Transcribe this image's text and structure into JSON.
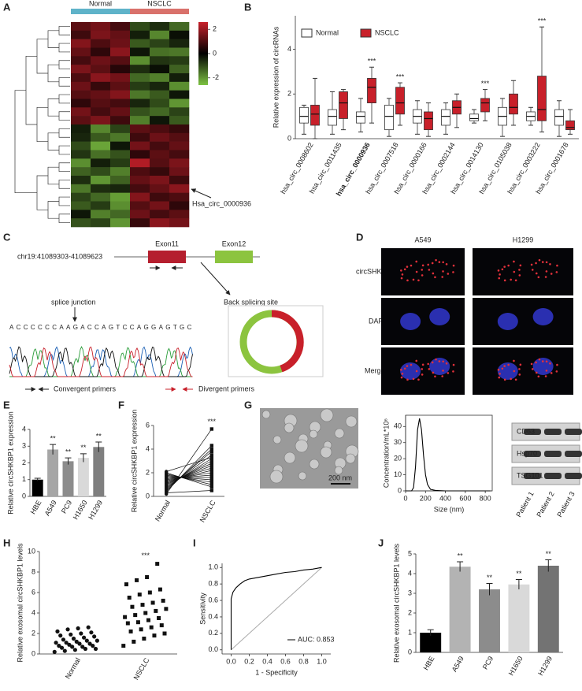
{
  "chart_data": [
    {
      "type": "heatmap",
      "panel": "A",
      "groups": [
        {
          "name": "Normal",
          "color": "#5fb3c9"
        },
        {
          "name": "NSCLC",
          "color": "#d9716b"
        }
      ],
      "colors": [
        "#7dc242",
        "#000000",
        "#c8202a"
      ],
      "clim": [
        -2.6,
        2.6
      ],
      "cticks": [
        2,
        0,
        -2
      ],
      "annotation": "Hsa_circ_0000936",
      "values": [
        [
          1.2,
          1.5,
          0.9,
          -1.0,
          -0.6,
          -1.4
        ],
        [
          0.8,
          1.6,
          1.3,
          -0.4,
          -1.8,
          -0.2
        ],
        [
          1.7,
          1.0,
          1.4,
          -1.2,
          -0.9,
          -0.5
        ],
        [
          1.3,
          0.6,
          1.8,
          -0.3,
          -1.5,
          -1.6
        ],
        [
          0.9,
          1.4,
          1.1,
          -1.9,
          -0.7,
          -0.8
        ],
        [
          1.6,
          1.2,
          0.5,
          -0.6,
          -0.2,
          -1.3
        ],
        [
          1.0,
          1.8,
          1.5,
          -1.4,
          -1.7,
          -0.4
        ],
        [
          1.4,
          0.7,
          1.2,
          -0.8,
          -0.5,
          -1.9
        ],
        [
          1.1,
          1.3,
          1.7,
          -1.6,
          -1.2,
          -0.3
        ],
        [
          0.6,
          1.1,
          0.9,
          -0.5,
          -1.0,
          -2.0
        ],
        [
          1.5,
          0.9,
          1.3,
          -1.1,
          -1.4,
          -0.9
        ],
        [
          1.2,
          1.6,
          0.8,
          -1.7,
          -0.3,
          -1.2
        ],
        [
          -0.4,
          -1.8,
          -0.9,
          1.2,
          1.0,
          0.7
        ],
        [
          -0.5,
          -1.2,
          -1.6,
          0.8,
          1.4,
          1.1
        ],
        [
          -1.0,
          -2.2,
          -0.3,
          1.5,
          0.9,
          1.3
        ],
        [
          -0.7,
          -1.5,
          -1.1,
          0.6,
          1.2,
          0.9
        ],
        [
          -1.9,
          -0.4,
          -0.8,
          2.3,
          1.1,
          1.6
        ],
        [
          -1.3,
          -1.0,
          -1.7,
          1.0,
          0.7,
          1.4
        ],
        [
          -0.6,
          -2.0,
          -1.3,
          1.3,
          1.6,
          0.8
        ],
        [
          -1.6,
          -0.6,
          -0.5,
          0.9,
          1.3,
          1.8
        ],
        [
          -0.9,
          -1.4,
          -2.1,
          1.7,
          0.8,
          1.0
        ],
        [
          -1.2,
          -0.8,
          -1.9,
          1.1,
          1.5,
          0.6
        ],
        [
          -0.3,
          -1.7,
          -1.4,
          1.4,
          0.9,
          1.2
        ],
        [
          -1.1,
          -0.9,
          -2.0,
          0.7,
          1.8,
          1.5
        ]
      ]
    },
    {
      "type": "box",
      "panel": "B",
      "ylabel": "Relative expression of circRNAs",
      "ylim": [
        0,
        5.5
      ],
      "yticks": [
        0,
        2,
        4
      ],
      "categories": [
        "hsa_circ_0008602",
        "hsa_circ_0011435",
        "hsa_circ_0000936",
        "hsa_circ_0007518",
        "hsa_circ_0000166",
        "hsa_circ_0002144",
        "hsa_circ_0014130",
        "hsa_circ_0105038",
        "hsa_circ_0003222",
        "hsa_circ_0001678"
      ],
      "series": [
        {
          "name": "Normal",
          "color": "#ffffff",
          "low": [
            0.2,
            0.2,
            0.3,
            0.1,
            0.2,
            0.2,
            0.7,
            0.1,
            0.6,
            0.1
          ],
          "q1": [
            0.7,
            0.6,
            0.7,
            0.4,
            0.7,
            0.6,
            0.8,
            0.6,
            0.8,
            0.6
          ],
          "median": [
            1.0,
            1.0,
            1.0,
            1.0,
            1.0,
            1.0,
            0.9,
            1.0,
            1.0,
            1.0
          ],
          "q3": [
            1.4,
            1.3,
            1.2,
            1.5,
            1.3,
            1.3,
            1.1,
            1.4,
            1.2,
            1.3
          ],
          "high": [
            1.5,
            2.1,
            1.8,
            1.8,
            1.7,
            1.6,
            1.3,
            1.8,
            1.4,
            1.7
          ]
        },
        {
          "name": "NSCLC",
          "color": "#c8202a",
          "low": [
            0.0,
            0.4,
            0.7,
            0.6,
            0.1,
            0.5,
            0.8,
            0.6,
            0.3,
            0.2
          ],
          "q1": [
            0.6,
            0.9,
            1.6,
            1.1,
            0.4,
            1.1,
            1.2,
            1.1,
            0.8,
            0.4
          ],
          "median": [
            1.1,
            1.6,
            2.3,
            1.6,
            0.9,
            1.4,
            1.6,
            1.4,
            1.3,
            0.5
          ],
          "q3": [
            1.5,
            2.1,
            2.7,
            2.3,
            1.2,
            1.7,
            1.8,
            2.0,
            2.8,
            0.8
          ],
          "high": [
            2.7,
            2.2,
            3.2,
            2.5,
            1.6,
            2.0,
            2.2,
            2.6,
            5.0,
            1.3
          ]
        }
      ],
      "significance": [
        null,
        null,
        "***",
        "***",
        null,
        null,
        "***",
        null,
        "***",
        null
      ]
    },
    {
      "type": "bar",
      "panel": "E",
      "ylabel": "Relative circSHKBP1 expression",
      "ylim": [
        0,
        4
      ],
      "yticks": [
        0,
        1,
        2,
        3,
        4
      ],
      "categories": [
        "HBE",
        "A549",
        "PC9",
        "H1650",
        "H1299"
      ],
      "values": [
        1.0,
        2.8,
        2.1,
        2.3,
        2.95
      ],
      "errors": [
        0.08,
        0.3,
        0.2,
        0.25,
        0.3
      ],
      "colors": [
        "#000000",
        "#a6a6a6",
        "#8c8c8c",
        "#d9d9d9",
        "#7f7f7f"
      ],
      "significance": [
        null,
        "**",
        "**",
        "**",
        "**"
      ]
    },
    {
      "type": "paired",
      "panel": "F",
      "ylabel": "Relative circSHKBP1 expression",
      "ylim": [
        0,
        6
      ],
      "yticks": [
        0,
        2,
        4,
        6
      ],
      "significance": "***",
      "series": [
        {
          "name": "Normal",
          "values": [
            0.2,
            0.4,
            0.5,
            0.6,
            0.7,
            0.8,
            0.9,
            1.0,
            1.1,
            1.2,
            1.3,
            1.4,
            1.5,
            1.6,
            1.7,
            1.8,
            1.9,
            2.0,
            2.1,
            0.3
          ]
        },
        {
          "name": "NSCLC",
          "values": [
            5.7,
            4.3,
            4.0,
            3.8,
            3.5,
            3.2,
            3.0,
            2.8,
            2.6,
            2.4,
            2.2,
            2.0,
            1.8,
            1.6,
            1.4,
            1.2,
            1.0,
            0.8,
            3.3,
            0.5
          ]
        }
      ]
    },
    {
      "type": "line",
      "panel": "G",
      "frame": true,
      "xlabel": "Size (nm)",
      "ylabel": "Concentration/mL*10⁶",
      "xlim": [
        0,
        870
      ],
      "ylim": [
        0,
        47
      ],
      "xticks": [
        0,
        200,
        400,
        600,
        800
      ],
      "yticks": [
        0,
        10,
        20,
        30,
        40
      ],
      "x": [
        0,
        60,
        80,
        100,
        120,
        140,
        160,
        180,
        200,
        220,
        250,
        300,
        400,
        500,
        600,
        700,
        800,
        850
      ],
      "values": [
        0,
        0,
        2,
        15,
        38,
        45,
        38,
        22,
        10,
        4,
        1,
        0.3,
        0,
        0,
        0,
        0,
        0,
        0
      ],
      "color": "#000000"
    },
    {
      "type": "dot",
      "panel": "H",
      "ylabel": "Relative exosomal circSHKBP1 levels",
      "ylim": [
        0,
        10
      ],
      "yticks": [
        0,
        2,
        4,
        6,
        8,
        10
      ],
      "significance": [
        null,
        "***"
      ],
      "series": [
        {
          "name": "Normal",
          "values": [
            0.2,
            0.3,
            0.4,
            0.5,
            0.5,
            0.6,
            0.7,
            0.7,
            0.8,
            0.8,
            0.9,
            1.0,
            1.0,
            1.1,
            1.1,
            1.2,
            1.3,
            1.3,
            1.4,
            1.5,
            1.6,
            1.7,
            1.8,
            1.9,
            2.0,
            2.1,
            2.2,
            2.4,
            2.5,
            2.6
          ]
        },
        {
          "name": "NSCLC",
          "values": [
            0.8,
            1.2,
            1.5,
            1.8,
            2.0,
            2.2,
            2.4,
            2.6,
            2.8,
            3.0,
            3.1,
            3.3,
            3.5,
            3.6,
            3.8,
            4.0,
            4.2,
            4.4,
            4.6,
            4.8,
            5.0,
            5.2,
            5.5,
            5.8,
            6.0,
            6.3,
            6.8,
            7.2,
            7.5,
            8.8
          ]
        }
      ]
    },
    {
      "type": "line",
      "panel": "I",
      "frame": false,
      "diagonal": true,
      "legend": "AUC: 0.853",
      "xlabel": "1 - Specificity",
      "ylabel": "Sensitivity",
      "xlim": [
        -0.1,
        1.1
      ],
      "ylim": [
        -0.05,
        1.05
      ],
      "xticks": [
        {
          "value": 0,
          "label": "0.0"
        },
        {
          "value": 0.2,
          "label": "0.2"
        },
        {
          "value": 0.4,
          "label": "0.4"
        },
        {
          "value": 0.6,
          "label": "0.6"
        },
        {
          "value": 0.8,
          "label": "0.8"
        },
        {
          "value": 1,
          "label": "1.0"
        }
      ],
      "yticks": [
        {
          "value": 0,
          "label": "0.0"
        },
        {
          "value": 0.2,
          "label": "0.2"
        },
        {
          "value": 0.4,
          "label": "0.4"
        },
        {
          "value": 0.6,
          "label": "0.6"
        },
        {
          "value": 0.8,
          "label": "0.8"
        },
        {
          "value": 1,
          "label": "1.0"
        }
      ],
      "x": [
        0,
        0,
        0.02,
        0.05,
        0.08,
        0.1,
        0.15,
        0.2,
        0.3,
        0.4,
        0.5,
        0.6,
        0.7,
        0.8,
        0.9,
        1.0
      ],
      "values": [
        0,
        0.62,
        0.7,
        0.75,
        0.78,
        0.8,
        0.84,
        0.86,
        0.88,
        0.9,
        0.92,
        0.94,
        0.95,
        0.97,
        0.98,
        1.0
      ],
      "color": "#000000"
    },
    {
      "type": "bar",
      "panel": "J",
      "ylabel": "Relative exosomal circSHKBP1 levels",
      "ylim": [
        0,
        5
      ],
      "yticks": [
        0,
        1,
        2,
        3,
        4,
        5
      ],
      "categories": [
        "HBE",
        "A549",
        "PC9",
        "H1650",
        "H1299"
      ],
      "values": [
        1.0,
        4.35,
        3.2,
        3.45,
        4.4
      ],
      "errors": [
        0.15,
        0.25,
        0.3,
        0.25,
        0.3
      ],
      "colors": [
        "#000000",
        "#b3b3b3",
        "#8c8c8c",
        "#d9d9d9",
        "#737373"
      ],
      "significance": [
        null,
        "**",
        "**",
        "**",
        "**"
      ]
    }
  ],
  "panels": {
    "C": {
      "letter": "C",
      "locus": "chr19:41089303-41089623",
      "exons": [
        "Exon11",
        "Exon12"
      ],
      "splice_junction": "splice junction",
      "back_splicing": "Back splicing site",
      "sequence": "ACCCCCCAAGACCAGTCCAGGAGTGC",
      "legend": [
        "Convergent primers",
        "Divergent primers"
      ]
    },
    "D": {
      "letter": "D",
      "columns": [
        "A549",
        "H1299"
      ],
      "rows": [
        "circSHKBP1",
        "DAPI",
        "Merge"
      ]
    },
    "G": {
      "scale_bar": "200 nm",
      "blots": [
        "CD63",
        "Hsp70",
        "TSG101"
      ],
      "patients": [
        "Patient 1",
        "Patient 2",
        "Patient 3"
      ]
    }
  }
}
